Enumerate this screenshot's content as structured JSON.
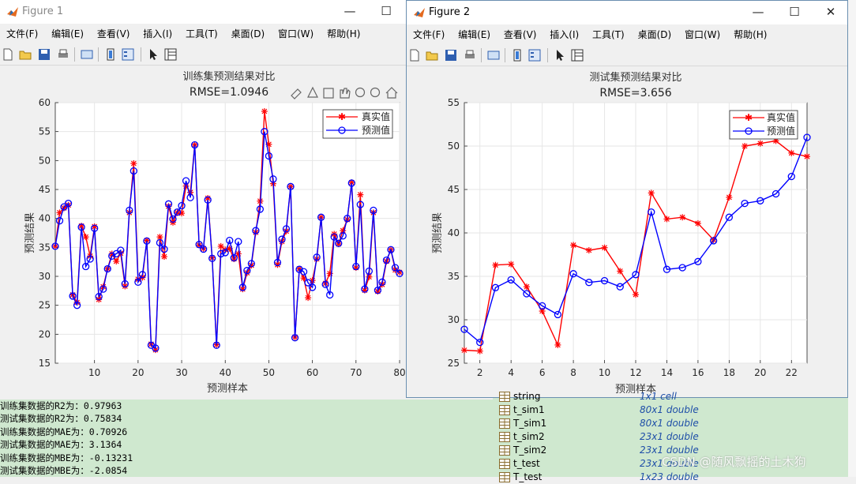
{
  "fig1": {
    "title": "Figure 1",
    "menus": [
      "文件(F)",
      "编辑(E)",
      "查看(V)",
      "插入(I)",
      "工具(T)",
      "桌面(D)",
      "窗口(W)",
      "帮助(H)"
    ],
    "controls": {
      "min": "—",
      "max": "☐"
    }
  },
  "fig2": {
    "title": "Figure 2",
    "menus": [
      "文件(F)",
      "编辑(E)",
      "查看(V)",
      "插入(I)",
      "工具(T)",
      "桌面(D)",
      "窗口(W)",
      "帮助(H)"
    ],
    "controls": {
      "min": "—",
      "max": "☐",
      "close": "✕"
    }
  },
  "chart_data": [
    {
      "type": "line",
      "title": "训练集预测结果对比",
      "subtitle": "RMSE=1.0946",
      "xlabel": "预测样本",
      "ylabel": "预测结果",
      "xlim": [
        1,
        80
      ],
      "ylim": [
        15,
        60
      ],
      "xticks": [
        10,
        20,
        30,
        40,
        50,
        60,
        70,
        80
      ],
      "yticks": [
        15,
        20,
        25,
        30,
        35,
        40,
        45,
        50,
        55,
        60
      ],
      "grid": true,
      "legend_position": "top-right",
      "x": [
        1,
        2,
        3,
        4,
        5,
        6,
        7,
        8,
        9,
        10,
        11,
        12,
        13,
        14,
        15,
        16,
        17,
        18,
        19,
        20,
        21,
        22,
        23,
        24,
        25,
        26,
        27,
        28,
        29,
        30,
        31,
        32,
        33,
        34,
        35,
        36,
        37,
        38,
        39,
        40,
        41,
        42,
        43,
        44,
        45,
        46,
        47,
        48,
        49,
        50,
        51,
        52,
        53,
        54,
        55,
        56,
        57,
        58,
        59,
        60,
        61,
        62,
        63,
        64,
        65,
        66,
        67,
        68,
        69,
        70,
        71,
        72,
        73,
        74,
        75,
        76,
        77,
        78,
        79,
        80
      ],
      "series": [
        {
          "name": "真实值",
          "color": "#ff0000",
          "marker": "star",
          "values": [
            35.2,
            41.0,
            41.8,
            42.3,
            26.8,
            25.5,
            38.7,
            36.8,
            33.5,
            38.6,
            26.0,
            28.2,
            31.3,
            33.9,
            32.6,
            34.0,
            28.3,
            41.0,
            49.5,
            29.5,
            29.8,
            36.2,
            18.3,
            17.3,
            36.8,
            33.4,
            42.1,
            39.3,
            41.0,
            40.9,
            45.6,
            44.5,
            52.7,
            35.4,
            34.8,
            43.5,
            33.2,
            18.2,
            35.2,
            34.6,
            34.8,
            33.0,
            33.9,
            27.8,
            30.6,
            31.9,
            37.6,
            43.0,
            58.5,
            52.8,
            46.0,
            32.0,
            36.0,
            37.8,
            45.5,
            19.5,
            31.3,
            29.7,
            26.3,
            29.3,
            33.0,
            40.2,
            28.8,
            30.5,
            37.3,
            35.6,
            37.9,
            39.8,
            46.2,
            31.5,
            44.1,
            27.6,
            29.9,
            41.0,
            27.4,
            28.6,
            32.6,
            34.6,
            31.1,
            30.7
          ]
        },
        {
          "name": "预测值",
          "color": "#0000ff",
          "marker": "circle",
          "values": [
            35.2,
            39.6,
            42.0,
            42.6,
            26.6,
            25.0,
            38.5,
            31.7,
            33.0,
            38.3,
            26.5,
            27.8,
            31.3,
            33.5,
            33.9,
            34.5,
            28.7,
            41.4,
            48.2,
            29.0,
            30.3,
            36.1,
            18.1,
            17.6,
            35.8,
            34.7,
            42.5,
            39.9,
            41.1,
            42.2,
            46.5,
            43.6,
            52.7,
            35.5,
            34.7,
            43.2,
            33.1,
            18.1,
            33.9,
            34.1,
            36.2,
            33.2,
            36.0,
            28.1,
            31.0,
            32.2,
            37.9,
            41.6,
            55.0,
            50.8,
            46.8,
            32.4,
            36.4,
            38.2,
            45.5,
            19.4,
            31.2,
            30.8,
            28.9,
            28.1,
            33.3,
            40.2,
            28.6,
            26.8,
            36.8,
            35.7,
            37.0,
            40.0,
            46.1,
            31.7,
            42.4,
            27.8,
            30.9,
            41.4,
            27.6,
            29.0,
            32.8,
            34.6,
            31.5,
            30.5
          ]
        }
      ]
    },
    {
      "type": "line",
      "title": "测试集预测结果对比",
      "subtitle": "RMSE=3.656",
      "xlabel": "预测样本",
      "ylabel": "预测结果",
      "xlim": [
        1,
        23
      ],
      "ylim": [
        25,
        55
      ],
      "xticks": [
        2,
        4,
        6,
        8,
        10,
        12,
        14,
        16,
        18,
        20,
        22
      ],
      "yticks": [
        25,
        30,
        35,
        40,
        45,
        50,
        55
      ],
      "grid": true,
      "legend_position": "top-right",
      "x": [
        1,
        2,
        3,
        4,
        5,
        6,
        7,
        8,
        9,
        10,
        11,
        12,
        13,
        14,
        15,
        16,
        17,
        18,
        19,
        20,
        21,
        22,
        23
      ],
      "series": [
        {
          "name": "真实值",
          "color": "#ff0000",
          "marker": "star",
          "values": [
            26.5,
            26.4,
            36.3,
            36.4,
            33.8,
            31.0,
            27.1,
            38.6,
            38.0,
            38.3,
            35.6,
            32.9,
            44.6,
            41.6,
            41.8,
            41.1,
            39.2,
            44.1,
            50.0,
            50.3,
            50.6,
            49.2,
            48.8
          ]
        },
        {
          "name": "预测值",
          "color": "#0000ff",
          "marker": "circle",
          "values": [
            28.9,
            27.4,
            33.7,
            34.6,
            33.0,
            31.6,
            30.6,
            35.3,
            34.3,
            34.5,
            33.8,
            35.2,
            42.4,
            35.8,
            36.0,
            36.7,
            39.1,
            41.8,
            43.4,
            43.7,
            44.5,
            46.5,
            51.0
          ]
        }
      ]
    }
  ],
  "console": {
    "lines": [
      "训练集数据的R2为：0.97963",
      "测试集数据的R2为：0.75834",
      "训练集数据的MAE为：0.70926",
      "测试集数据的MAE为：3.1364",
      "训练集数据的MBE为：-0.13231",
      "测试集数据的MBE为：-2.0854"
    ]
  },
  "workspace": {
    "rows": [
      {
        "name": "string",
        "value": "1x1 cell"
      },
      {
        "name": "t_sim1",
        "value": "80x1 double"
      },
      {
        "name": "T_sim1",
        "value": "80x1 double"
      },
      {
        "name": "t_sim2",
        "value": "23x1 double"
      },
      {
        "name": "T_sim2",
        "value": "23x1 double"
      },
      {
        "name": "t_test",
        "value": "23x1 double"
      },
      {
        "name": "T_test",
        "value": "1x23 double"
      }
    ]
  },
  "watermark": "CSDN @随风飘摇的土木狗"
}
